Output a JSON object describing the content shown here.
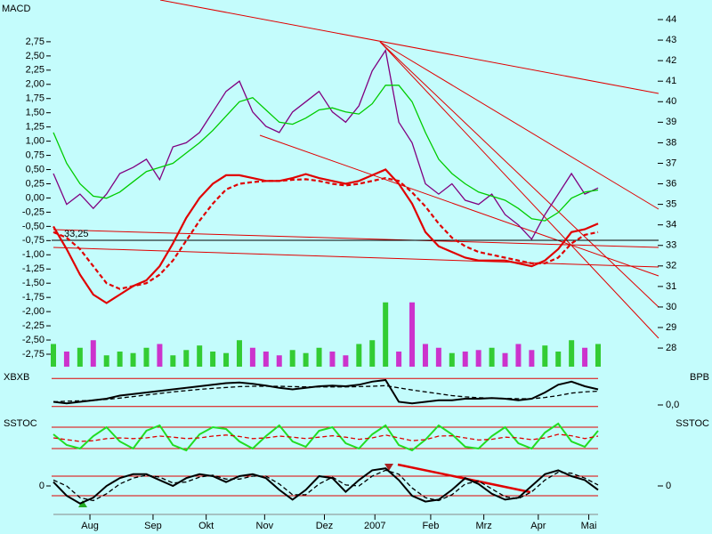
{
  "chart_data": [
    {
      "type": "line",
      "title": "MACD",
      "x": [
        0,
        1,
        2,
        3,
        4,
        5,
        6,
        7,
        8,
        9,
        10,
        11,
        12,
        13,
        14,
        15,
        16,
        17,
        18,
        19,
        20,
        21,
        22,
        23,
        24,
        25,
        26,
        27,
        28,
        29,
        30,
        31,
        32,
        33,
        34,
        35,
        36,
        37,
        38,
        39,
        40,
        41
      ],
      "xlim": [
        0,
        41
      ],
      "ylim": [
        -2.75,
        3.14
      ],
      "yticks": [
        {
          "value": 2.75,
          "label": "2,75"
        },
        {
          "value": 2.5,
          "label": "2,50"
        },
        {
          "value": 2.25,
          "label": "2,25"
        },
        {
          "value": 2,
          "label": "2,00"
        },
        {
          "value": 1.75,
          "label": "1,75"
        },
        {
          "value": 1.5,
          "label": "1,50"
        },
        {
          "value": 1.25,
          "label": "1,25"
        },
        {
          "value": 1,
          "label": "1,00"
        },
        {
          "value": 0.75,
          "label": "0,75"
        },
        {
          "value": 0.5,
          "label": "0,50"
        },
        {
          "value": 0.25,
          "label": "0,25"
        },
        {
          "value": 0,
          "label": "0,00"
        },
        {
          "value": -0.25,
          "label": "-0,25"
        },
        {
          "value": -0.5,
          "label": "-0,50"
        },
        {
          "value": -0.75,
          "label": "-0,75"
        },
        {
          "value": -1,
          "label": "-1,00"
        },
        {
          "value": -1.25,
          "label": "-1,25"
        },
        {
          "value": -1.5,
          "label": "-1,50"
        },
        {
          "value": -1.75,
          "label": "-1,75"
        },
        {
          "value": -2,
          "label": "-2,00"
        },
        {
          "value": -2.25,
          "label": "-2,25"
        },
        {
          "value": -2.5,
          "label": "-2,50"
        },
        {
          "value": -2.75,
          "label": "-2,75"
        }
      ],
      "y2lim": [
        27.7,
        44
      ],
      "y2ticks": [
        28,
        29,
        30,
        31,
        32,
        33,
        34,
        35,
        36,
        37,
        38,
        39,
        40,
        41,
        42,
        43,
        44
      ],
      "hline": {
        "value": 33.25,
        "label": "33,25",
        "color": "#000000"
      },
      "series": [
        {
          "color": "#800080",
          "axis": "y2",
          "values": [
            36.5,
            35.0,
            35.5,
            34.8,
            35.5,
            36.5,
            36.8,
            37.2,
            36.2,
            37.8,
            38.0,
            38.5,
            39.5,
            40.5,
            41.0,
            39.5,
            38.8,
            38.5,
            39.5,
            40.0,
            40.5,
            39.5,
            39.0,
            39.8,
            41.5,
            42.5,
            39.0,
            38.0,
            36.0,
            35.5,
            36.0,
            35.2,
            35.0,
            35.5,
            34.5,
            34.0,
            33.3,
            34.5,
            35.5,
            36.5,
            35.5,
            35.8
          ]
        },
        {
          "color": "#00cc00",
          "axis": "y2",
          "values": [
            38.5,
            37.0,
            36.0,
            35.4,
            35.3,
            35.6,
            36.1,
            36.6,
            36.8,
            37.0,
            37.5,
            38.0,
            38.6,
            39.3,
            40.0,
            40.2,
            39.6,
            39.0,
            38.9,
            39.2,
            39.6,
            39.7,
            39.5,
            39.4,
            39.9,
            40.8,
            40.8,
            40.0,
            38.5,
            37.2,
            36.5,
            36.0,
            35.6,
            35.4,
            35.2,
            34.8,
            34.3,
            34.2,
            34.6,
            35.3,
            35.6,
            35.7
          ]
        },
        {
          "color": "#e00000",
          "values": [
            -0.5,
            -0.9,
            -1.35,
            -1.7,
            -1.85,
            -1.7,
            -1.55,
            -1.45,
            -1.2,
            -0.8,
            -0.35,
            0.0,
            0.25,
            0.4,
            0.4,
            0.35,
            0.3,
            0.3,
            0.35,
            0.42,
            0.35,
            0.3,
            0.25,
            0.3,
            0.4,
            0.5,
            0.25,
            -0.1,
            -0.6,
            -0.85,
            -0.95,
            -1.05,
            -1.1,
            -1.1,
            -1.1,
            -1.15,
            -1.2,
            -1.1,
            -0.9,
            -0.6,
            -0.55,
            -0.45
          ]
        },
        {
          "color": "#e00000",
          "dashed": true,
          "values": [
            -0.6,
            -0.7,
            -0.9,
            -1.2,
            -1.5,
            -1.6,
            -1.55,
            -1.5,
            -1.35,
            -1.1,
            -0.75,
            -0.4,
            -0.1,
            0.15,
            0.25,
            0.28,
            0.3,
            0.3,
            0.32,
            0.33,
            0.3,
            0.25,
            0.22,
            0.25,
            0.3,
            0.35,
            0.3,
            0.1,
            -0.15,
            -0.45,
            -0.7,
            -0.85,
            -0.95,
            -1.0,
            -1.05,
            -1.1,
            -1.15,
            -1.15,
            -1.05,
            -0.8,
            -0.65,
            -0.6
          ]
        }
      ],
      "volume": {
        "vlim": [
          0,
          100
        ],
        "up_color": "#33cc33",
        "down_color": "#cc33cc",
        "values": [
          30,
          20,
          25,
          35,
          15,
          20,
          18,
          25,
          30,
          15,
          22,
          28,
          20,
          18,
          35,
          25,
          20,
          15,
          22,
          18,
          25,
          20,
          15,
          30,
          35,
          85,
          20,
          85,
          30,
          25,
          18,
          20,
          22,
          25,
          18,
          30,
          22,
          28,
          20,
          35,
          25,
          30
        ]
      }
    },
    {
      "type": "line",
      "title": "XBXB",
      "right_title": "BPB",
      "ylim": [
        -0.2,
        1
      ],
      "y2ticks": [
        {
          "value": 0,
          "label": "0,0"
        }
      ],
      "levels": [
        0.85,
        -0.05
      ],
      "level_color": "#e00000",
      "series": [
        {
          "color": "#000000",
          "values": [
            0.1,
            0.05,
            0.1,
            0.15,
            0.2,
            0.3,
            0.35,
            0.4,
            0.45,
            0.5,
            0.55,
            0.6,
            0.65,
            0.7,
            0.72,
            0.68,
            0.62,
            0.55,
            0.5,
            0.55,
            0.6,
            0.62,
            0.6,
            0.65,
            0.75,
            0.8,
            0.1,
            0.05,
            0.1,
            0.15,
            0.15,
            0.2,
            0.2,
            0.22,
            0.2,
            0.15,
            0.2,
            0.4,
            0.65,
            0.75,
            0.6,
            0.5
          ]
        },
        {
          "color": "#000000",
          "dashed": true,
          "values": [
            0.1,
            0.12,
            0.13,
            0.15,
            0.18,
            0.22,
            0.27,
            0.32,
            0.37,
            0.42,
            0.46,
            0.5,
            0.53,
            0.56,
            0.59,
            0.6,
            0.6,
            0.6,
            0.59,
            0.58,
            0.58,
            0.58,
            0.58,
            0.59,
            0.6,
            0.62,
            0.55,
            0.48,
            0.42,
            0.36,
            0.3,
            0.26,
            0.23,
            0.22,
            0.21,
            0.2,
            0.2,
            0.24,
            0.3,
            0.38,
            0.42,
            0.44
          ]
        }
      ]
    },
    {
      "type": "line",
      "title": "SSTOC",
      "right_title": "SSTOC",
      "ylim": [
        0,
        100
      ],
      "levels": [
        80,
        20
      ],
      "level_color": "#e00000",
      "series": [
        {
          "color": "#22dd22",
          "values": [
            60,
            30,
            20,
            55,
            80,
            40,
            20,
            70,
            85,
            30,
            15,
            60,
            80,
            75,
            40,
            20,
            55,
            85,
            40,
            25,
            70,
            80,
            35,
            20,
            60,
            85,
            30,
            15,
            45,
            85,
            60,
            25,
            20,
            55,
            80,
            35,
            20,
            65,
            90,
            40,
            25,
            70
          ]
        },
        {
          "color": "#e00000",
          "dashed": true,
          "values": [
            50,
            45,
            40,
            42,
            48,
            50,
            48,
            50,
            55,
            52,
            48,
            50,
            55,
            58,
            54,
            48,
            50,
            55,
            52,
            48,
            52,
            56,
            52,
            46,
            50,
            58,
            50,
            42,
            45,
            55,
            56,
            50,
            44,
            46,
            52,
            50,
            45,
            50,
            60,
            56,
            48,
            55
          ]
        }
      ]
    },
    {
      "type": "line",
      "ylim": [
        -1,
        1
      ],
      "yticks": [
        0
      ],
      "y2ticks": [
        0
      ],
      "levels": [
        0.5,
        -0.5
      ],
      "level_color": "#e00000",
      "xticks": [
        {
          "value": 2.75,
          "label": "Aug"
        },
        {
          "value": 7.5,
          "label": "Sep"
        },
        {
          "value": 11.5,
          "label": "Okt"
        },
        {
          "value": 15.9,
          "label": "Nov"
        },
        {
          "value": 20.4,
          "label": "Dez"
        },
        {
          "value": 24.2,
          "label": "2007"
        },
        {
          "value": 28.4,
          "label": "Feb"
        },
        {
          "value": 32.4,
          "label": "Mrz"
        },
        {
          "value": 36.5,
          "label": "Apr"
        },
        {
          "value": 40.3,
          "label": "Mai"
        }
      ],
      "series": [
        {
          "color": "#000000",
          "values": [
            0.2,
            -0.5,
            -0.9,
            -0.6,
            0,
            0.4,
            0.6,
            0.6,
            0.3,
            0,
            0.4,
            0.6,
            0.5,
            0.2,
            0.5,
            0.6,
            0.4,
            -0.2,
            -0.7,
            -0.2,
            0.5,
            0.4,
            -0.3,
            0.3,
            0.8,
            0.9,
            0.3,
            -0.5,
            -0.8,
            -0.7,
            -0.2,
            0.4,
            0.1,
            -0.4,
            -0.7,
            -0.6,
            0,
            0.6,
            0.8,
            0.5,
            0.3,
            -0.2
          ]
        },
        {
          "color": "#000000",
          "dashed": true,
          "values": [
            0.3,
            0,
            -0.6,
            -0.75,
            -0.4,
            0.1,
            0.4,
            0.55,
            0.45,
            0.15,
            0.2,
            0.45,
            0.55,
            0.35,
            0.35,
            0.5,
            0.5,
            0.1,
            -0.45,
            -0.45,
            0.1,
            0.45,
            0.05,
            0,
            0.5,
            0.8,
            0.6,
            -0.1,
            -0.6,
            -0.75,
            -0.45,
            0.1,
            0.25,
            -0.15,
            -0.55,
            -0.65,
            -0.3,
            0.3,
            0.7,
            0.65,
            0.4,
            0.05
          ]
        }
      ]
    }
  ]
}
